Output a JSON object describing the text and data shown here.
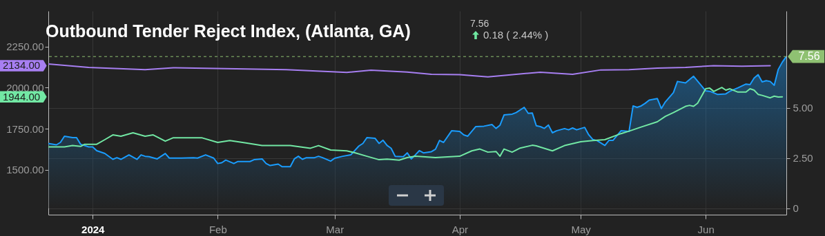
{
  "chart_data": {
    "type": "line",
    "title": "Outbound Tender Reject Index, (Atlanta, GA)",
    "annotations": [
      "7.56",
      "0.18 ( 2.44% )",
      "1944.00",
      "2134.00"
    ],
    "xlim": [
      "2023-12-21",
      "2024-06-21"
    ],
    "xticks": [
      {
        "value": "2024-01-01",
        "label": "2024"
      },
      {
        "value": "2024-02-01",
        "label": "Feb"
      },
      {
        "value": "2024-03-01",
        "label": "Mar"
      },
      {
        "value": "2024-04-01",
        "label": "Apr"
      },
      {
        "value": "2024-05-01",
        "label": "May"
      },
      {
        "value": "2024-06-01",
        "label": "Jun"
      }
    ],
    "ylim": [
      1226,
      2467
    ],
    "yticks": [
      {
        "value": 1500,
        "label": "1500.00"
      },
      {
        "value": 1750,
        "label": "1750.00"
      },
      {
        "value": 2000,
        "label": "2000.00"
      },
      {
        "value": 2250,
        "label": "2250.00"
      }
    ],
    "y2lim": [
      -0.32,
      9.83
    ],
    "y2ticks": [
      0,
      {
        "value": 2.5,
        "label": "2.50"
      },
      {
        "value": 5,
        "label": "5.00"
      }
    ],
    "grid": true,
    "ref_lines": [
      {
        "axis": "y2",
        "value": 7.56,
        "label": "7.56",
        "color": "#8fc172",
        "line_style": "dashed"
      }
    ],
    "series": [
      {
        "type": "area",
        "axis": "y2",
        "color": "#1a9dff",
        "x": [
          "2023-12-21",
          "2023-12-23",
          "2023-12-24",
          "2023-12-25",
          "2023-12-27",
          "2023-12-28",
          "2023-12-29",
          "2023-12-31",
          "2024-01-01",
          "2024-01-02",
          "2024-01-04",
          "2024-01-06",
          "2024-01-07",
          "2024-01-08",
          "2024-01-10",
          "2024-01-12",
          "2024-01-13",
          "2024-01-14",
          "2024-01-15",
          "2024-01-17",
          "2024-01-19",
          "2024-01-20",
          "2024-01-23",
          "2024-01-26",
          "2024-01-27",
          "2024-01-29",
          "2024-01-31",
          "2024-02-01",
          "2024-02-02",
          "2024-02-03",
          "2024-02-05",
          "2024-02-06",
          "2024-02-09",
          "2024-02-10",
          "2024-02-12",
          "2024-02-13",
          "2024-02-14",
          "2024-02-16",
          "2024-02-17",
          "2024-02-19",
          "2024-02-20",
          "2024-02-21",
          "2024-02-22",
          "2024-02-23",
          "2024-02-25",
          "2024-02-26",
          "2024-02-27",
          "2024-02-29",
          "2024-03-01",
          "2024-03-03",
          "2024-03-05",
          "2024-03-07",
          "2024-03-08",
          "2024-03-09",
          "2024-03-11",
          "2024-03-12",
          "2024-03-13",
          "2024-03-14",
          "2024-03-15",
          "2024-03-16",
          "2024-03-18",
          "2024-03-19",
          "2024-03-20",
          "2024-03-21",
          "2024-03-22",
          "2024-03-23",
          "2024-03-25",
          "2024-03-26",
          "2024-03-27",
          "2024-03-28",
          "2024-03-30",
          "2024-04-01",
          "2024-04-02",
          "2024-04-03",
          "2024-04-05",
          "2024-04-07",
          "2024-04-09",
          "2024-04-10",
          "2024-04-11",
          "2024-04-12",
          "2024-04-14",
          "2024-04-15",
          "2024-04-17",
          "2024-04-18",
          "2024-04-19",
          "2024-04-20",
          "2024-04-21",
          "2024-04-22",
          "2024-04-23",
          "2024-04-24",
          "2024-04-25",
          "2024-04-27",
          "2024-04-28",
          "2024-04-29",
          "2024-04-30",
          "2024-05-02",
          "2024-05-03",
          "2024-05-04",
          "2024-05-05",
          "2024-05-07",
          "2024-05-08",
          "2024-05-09",
          "2024-05-11",
          "2024-05-13",
          "2024-05-14",
          "2024-05-15",
          "2024-05-16",
          "2024-05-17",
          "2024-05-18",
          "2024-05-20",
          "2024-05-21",
          "2024-05-22",
          "2024-05-24",
          "2024-05-25",
          "2024-05-27",
          "2024-05-29",
          "2024-06-01",
          "2024-06-02",
          "2024-06-04",
          "2024-06-06",
          "2024-06-07",
          "2024-06-09",
          "2024-06-11",
          "2024-06-12",
          "2024-06-13",
          "2024-06-14",
          "2024-06-15",
          "2024-06-16",
          "2024-06-17",
          "2024-06-18",
          "2024-06-19",
          "2024-06-20",
          "2024-06-21"
        ],
        "values": [
          3.23,
          3.16,
          3.28,
          3.59,
          3.52,
          3.52,
          3.19,
          3.06,
          3.06,
          2.87,
          2.73,
          2.44,
          2.52,
          2.44,
          2.66,
          2.44,
          2.66,
          2.59,
          2.57,
          2.46,
          2.73,
          2.5,
          2.5,
          2.52,
          2.5,
          2.66,
          2.5,
          2.23,
          2.27,
          2.4,
          2.23,
          2.33,
          2.33,
          2.42,
          2.46,
          2.23,
          2.13,
          2.2,
          2.07,
          2.07,
          2.46,
          2.59,
          2.44,
          2.52,
          2.52,
          2.59,
          2.52,
          2.35,
          2.49,
          2.59,
          2.66,
          3.1,
          3.23,
          3.52,
          3.49,
          3.23,
          3.39,
          3.13,
          2.99,
          2.59,
          2.57,
          2.76,
          2.46,
          2.66,
          2.87,
          2.76,
          2.82,
          2.94,
          3.38,
          3.28,
          3.86,
          3.83,
          3.66,
          3.59,
          4.07,
          4.09,
          4.17,
          3.98,
          4.14,
          4.65,
          4.69,
          4.77,
          5.03,
          4.73,
          4.75,
          4.11,
          4.07,
          3.98,
          4.15,
          3.76,
          3.86,
          3.97,
          3.91,
          4.0,
          3.91,
          4.03,
          3.66,
          3.43,
          3.38,
          3.13,
          3.38,
          3.38,
          3.86,
          3.83,
          5.1,
          5.03,
          5.1,
          5.23,
          5.39,
          5.47,
          4.97,
          5.3,
          5.76,
          6.32,
          6.25,
          6.58,
          5.85,
          5.83,
          5.67,
          5.7,
          5.83,
          6.0,
          6.19,
          6.16,
          6.49,
          6.66,
          6.3,
          6.36,
          6.32,
          6.13,
          6.92,
          7.28,
          7.56
        ]
      },
      {
        "type": "line",
        "color": "#72e8a4",
        "x": [
          "2023-12-21",
          "2023-12-25",
          "2023-12-27",
          "2023-12-29",
          "2023-12-30",
          "2024-01-02",
          "2024-01-04",
          "2024-01-06",
          "2024-01-08",
          "2024-01-11",
          "2024-01-14",
          "2024-01-16",
          "2024-01-19",
          "2024-01-21",
          "2024-01-24",
          "2024-01-28",
          "2024-02-01",
          "2024-02-04",
          "2024-02-08",
          "2024-02-12",
          "2024-02-16",
          "2024-02-19",
          "2024-02-24",
          "2024-02-26",
          "2024-02-29",
          "2024-03-04",
          "2024-03-06",
          "2024-03-09",
          "2024-03-12",
          "2024-03-14",
          "2024-03-17",
          "2024-03-19",
          "2024-03-21",
          "2024-03-26",
          "2024-04-01",
          "2024-04-04",
          "2024-04-06",
          "2024-04-08",
          "2024-04-10",
          "2024-04-11",
          "2024-04-12",
          "2024-04-14",
          "2024-04-16",
          "2024-04-19",
          "2024-04-20",
          "2024-04-24",
          "2024-04-27",
          "2024-05-01",
          "2024-05-04",
          "2024-05-07",
          "2024-05-11",
          "2024-05-13",
          "2024-05-16",
          "2024-05-20",
          "2024-05-22",
          "2024-05-24",
          "2024-05-27",
          "2024-05-28",
          "2024-05-29",
          "2024-05-30",
          "2024-06-01",
          "2024-06-02",
          "2024-06-03",
          "2024-06-05",
          "2024-06-06",
          "2024-06-07",
          "2024-06-09",
          "2024-06-11",
          "2024-06-12",
          "2024-06-13",
          "2024-06-14",
          "2024-06-15",
          "2024-06-17",
          "2024-06-18",
          "2024-06-19",
          "2024-06-20"
        ],
        "values": [
          1639,
          1639,
          1647,
          1642,
          1655,
          1655,
          1683,
          1712,
          1704,
          1725,
          1704,
          1712,
          1674,
          1695,
          1695,
          1695,
          1666,
          1678,
          1663,
          1647,
          1647,
          1647,
          1631,
          1647,
          1620,
          1615,
          1603,
          1582,
          1561,
          1565,
          1558,
          1574,
          1582,
          1574,
          1582,
          1615,
          1626,
          1607,
          1611,
          1582,
          1626,
          1607,
          1632,
          1649,
          1645,
          1615,
          1647,
          1670,
          1678,
          1683,
          1720,
          1735,
          1760,
          1792,
          1825,
          1848,
          1886,
          1892,
          1886,
          1905,
          1993,
          1997,
          1977,
          2001,
          1985,
          1993,
          1973,
          1973,
          1993,
          1985,
          1959,
          1953,
          1938,
          1948,
          1943,
          1944
        ]
      },
      {
        "type": "line",
        "color": "#a77ff2",
        "x": [
          "2023-12-21",
          "2023-12-31",
          "2024-01-14",
          "2024-01-21",
          "2024-02-18",
          "2024-03-04",
          "2024-03-10",
          "2024-03-19",
          "2024-03-25",
          "2024-04-01",
          "2024-04-08",
          "2024-04-21",
          "2024-04-29",
          "2024-05-06",
          "2024-05-13",
          "2024-05-20",
          "2024-05-27",
          "2024-06-03",
          "2024-06-10",
          "2024-06-17"
        ],
        "values": [
          2144,
          2123,
          2110,
          2121,
          2110,
          2093,
          2106,
          2095,
          2081,
          2079,
          2066,
          2094,
          2081,
          2108,
          2110,
          2119,
          2123,
          2134,
          2131,
          2134
        ]
      }
    ]
  }
}
